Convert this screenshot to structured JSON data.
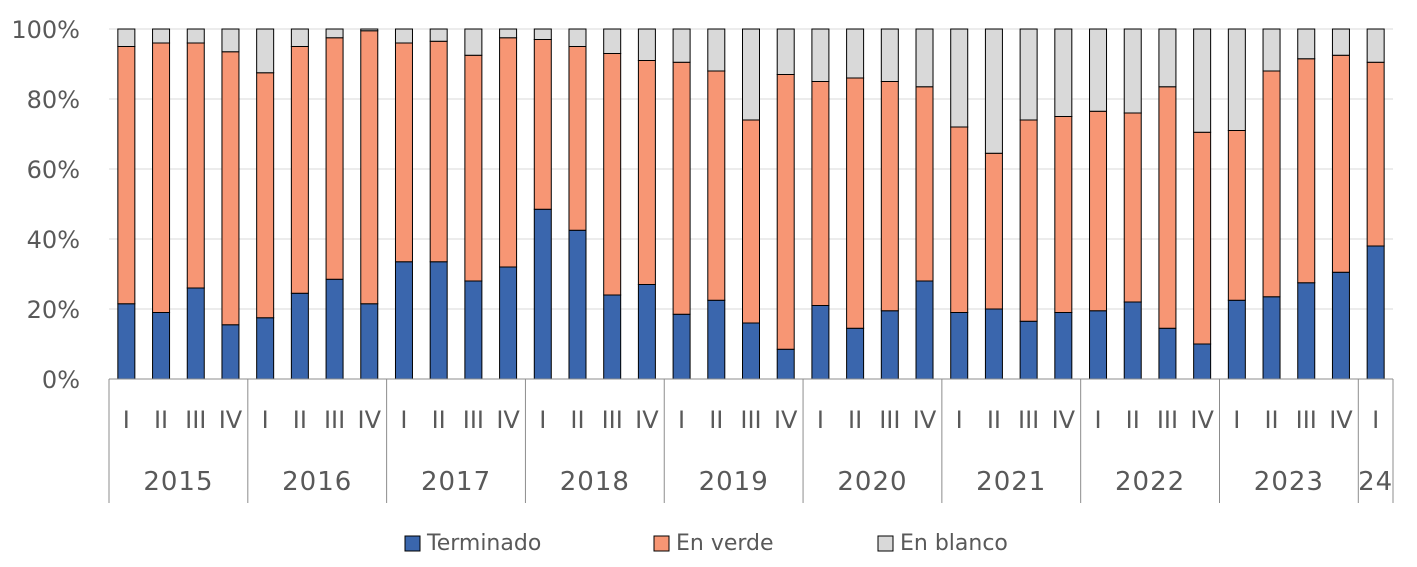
{
  "chart_data": {
    "type": "bar",
    "stacked": true,
    "ylim": [
      0,
      100
    ],
    "yticks": [
      0,
      20,
      40,
      60,
      80,
      100
    ],
    "ytick_labels": [
      "0%",
      "20%",
      "40%",
      "60%",
      "80%",
      "100%"
    ],
    "legend_position": "bottom",
    "colors": {
      "Terminado": "#3a66ad",
      "En verde": "#f79674",
      "En blanco": "#d9d9d9"
    },
    "years": [
      {
        "label": "2015",
        "quarters": [
          "I",
          "II",
          "III",
          "IV"
        ]
      },
      {
        "label": "2016",
        "quarters": [
          "I",
          "II",
          "III",
          "IV"
        ]
      },
      {
        "label": "2017",
        "quarters": [
          "I",
          "II",
          "III",
          "IV"
        ]
      },
      {
        "label": "2018",
        "quarters": [
          "I",
          "II",
          "III",
          "IV"
        ]
      },
      {
        "label": "2019",
        "quarters": [
          "I",
          "II",
          "III",
          "IV"
        ]
      },
      {
        "label": "2020",
        "quarters": [
          "I",
          "II",
          "III",
          "IV"
        ]
      },
      {
        "label": "2021",
        "quarters": [
          "I",
          "II",
          "III",
          "IV"
        ]
      },
      {
        "label": "2022",
        "quarters": [
          "I",
          "II",
          "III",
          "IV"
        ]
      },
      {
        "label": "2023",
        "quarters": [
          "I",
          "II",
          "III",
          "IV"
        ]
      },
      {
        "label": "24",
        "quarters": [
          "I"
        ]
      }
    ],
    "series": [
      {
        "name": "Terminado",
        "values": [
          21.5,
          19,
          26,
          15.5,
          17.5,
          24.5,
          28.5,
          21.5,
          33.5,
          33.5,
          28,
          32,
          48.5,
          42.5,
          24,
          27,
          18.5,
          22.5,
          16,
          8.5,
          21,
          14.5,
          19.5,
          28,
          19,
          20,
          16.5,
          19,
          19.5,
          22,
          14.5,
          10,
          22.5,
          23.5,
          27.5,
          30.5,
          38
        ]
      },
      {
        "name": "En verde",
        "values": [
          73.5,
          77,
          70,
          78,
          70,
          70.5,
          69,
          78,
          62.5,
          63,
          64.5,
          65.5,
          48.5,
          52.5,
          69,
          64,
          72,
          65.5,
          58,
          78.5,
          64,
          71.5,
          65.5,
          55.5,
          53,
          44.5,
          57.5,
          56,
          57,
          54,
          69,
          60.5,
          48.5,
          64.5,
          64,
          62,
          52.5
        ]
      },
      {
        "name": "En blanco",
        "values": [
          5,
          4,
          4,
          6.5,
          12.5,
          5,
          2.5,
          0.5,
          4,
          3.5,
          7.5,
          2.5,
          3,
          5,
          7,
          9,
          9.5,
          12,
          26,
          13,
          15,
          14,
          15,
          16.5,
          28,
          35.5,
          26,
          25,
          23.5,
          24,
          16.5,
          29.5,
          29,
          12,
          8.5,
          7.5,
          9.5
        ]
      }
    ]
  }
}
